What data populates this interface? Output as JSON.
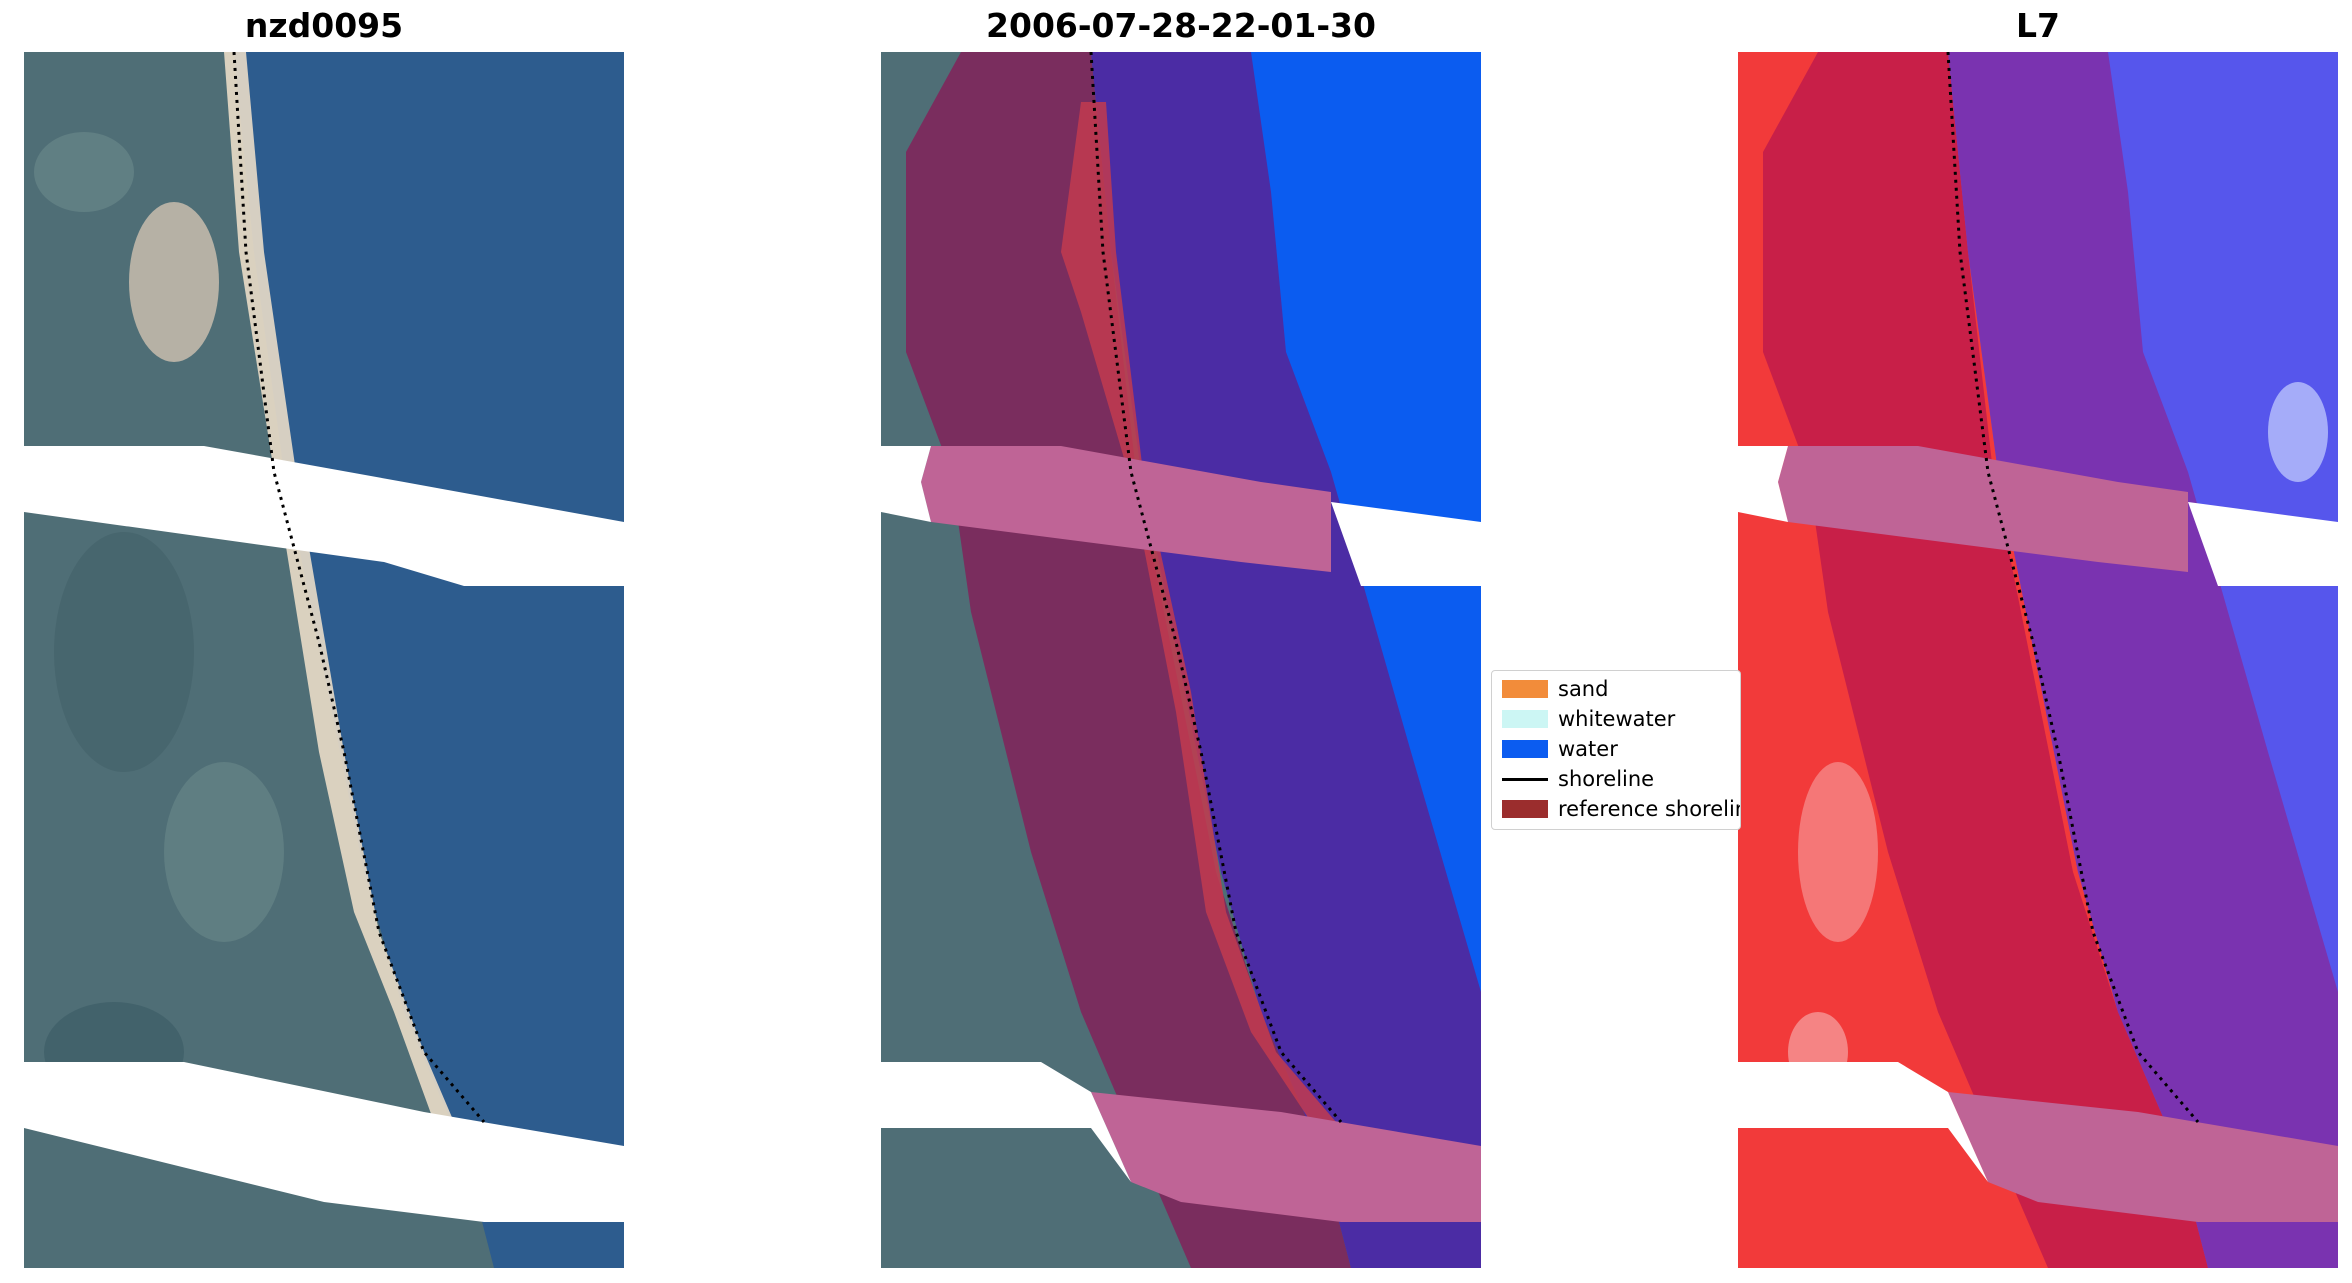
{
  "panels": [
    {
      "title": "nzd0095",
      "kind": "rgb-satellite-image"
    },
    {
      "title": "2006-07-28-22-01-30",
      "kind": "classified-overlay"
    },
    {
      "title": "L7",
      "kind": "index-overlay"
    }
  ],
  "legend": {
    "items": [
      {
        "label": "sand",
        "color": "#f28c3a",
        "shape": "patch"
      },
      {
        "label": "whitewater",
        "color": "#ccf6f4",
        "shape": "patch"
      },
      {
        "label": "water",
        "color": "#0b5cf0",
        "shape": "patch"
      },
      {
        "label": "shoreline",
        "color": "#000000",
        "shape": "line"
      },
      {
        "label": "reference shoreline",
        "color": "#9b2d2d",
        "shape": "patch"
      }
    ]
  },
  "colors": {
    "land": "#4f6e76",
    "land_dark": "#3e5f6a",
    "ocean": "#2d5c8e",
    "beach": "#e9dcc8",
    "water_class": "#0b5cf0",
    "buffer_land": "#7a2d5e",
    "buffer_water": "#4b2ca4",
    "buffer_stripe": "#bf6496",
    "sand_class": "#c23b4f",
    "index_land": "#f23a3a",
    "index_buffer_land": "#c81f48",
    "index_buffer_water": "#7a33b0",
    "index_water": "#5656ec",
    "nodata": "#ffffff"
  }
}
